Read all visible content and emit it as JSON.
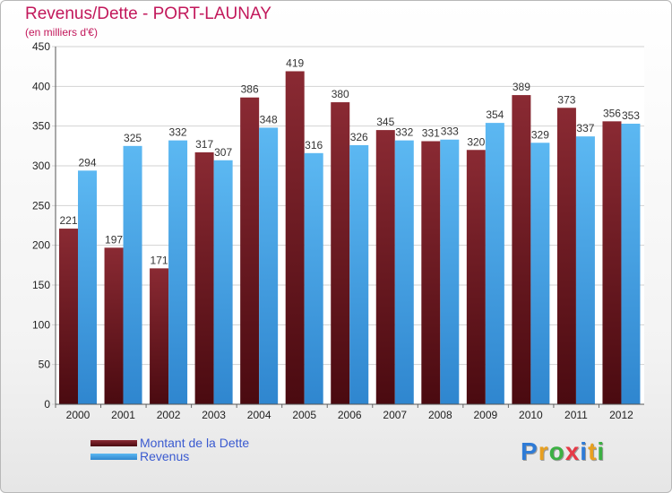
{
  "title": "Revenus/Dette - PORT-LAUNAY",
  "subtitle": "(en milliers d'€)",
  "logo": {
    "letters": [
      "P",
      "r",
      "o",
      "x",
      "i",
      "t",
      "i"
    ],
    "colors": [
      "#2e7bd6",
      "#e8a020",
      "#3cb043",
      "#e63946",
      "#2e7bd6",
      "#e8a020",
      "#3cb043"
    ]
  },
  "chart_data": {
    "type": "bar",
    "categories": [
      "2000",
      "2001",
      "2002",
      "2003",
      "2004",
      "2005",
      "2006",
      "2007",
      "2008",
      "2009",
      "2010",
      "2011",
      "2012"
    ],
    "series": [
      {
        "name": "Montant de la Dette",
        "color": "#7a1f28",
        "values": [
          221,
          197,
          171,
          317,
          386,
          419,
          380,
          345,
          331,
          320,
          389,
          373,
          356
        ]
      },
      {
        "name": "Revenus",
        "color": "#4aa3e6",
        "values": [
          294,
          325,
          332,
          307,
          348,
          316,
          326,
          332,
          333,
          354,
          329,
          337,
          353
        ]
      }
    ],
    "ylim": [
      0,
      450
    ],
    "yticks": [
      0,
      50,
      100,
      150,
      200,
      250,
      300,
      350,
      400,
      450
    ],
    "grid": true,
    "legend_position": "bottom-left"
  }
}
